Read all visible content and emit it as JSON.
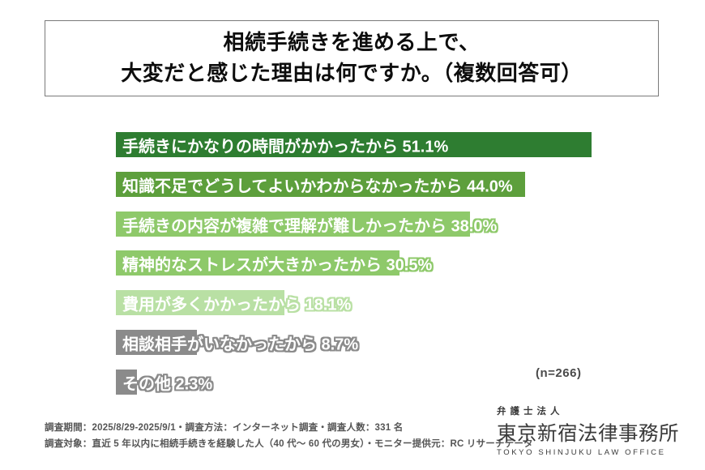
{
  "title": {
    "line1": "相続手続きを進める上で、",
    "line2": "大変だと感じた理由は何ですか。（複数回答可）"
  },
  "chart_data": {
    "type": "bar",
    "orientation": "horizontal",
    "title": "相続手続きを進める上で、大変だと感じた理由は何ですか。（複数回答可）",
    "categories": [
      "手続きにかなりの時間がかかったから",
      "知識不足でどうしてよいかわからなかったから",
      "手続きの内容が複雑で理解が難しかったから",
      "精神的なストレスが大きかったから",
      "費用が多くかかったから",
      "相談相手がいなかったから",
      "その他"
    ],
    "values": [
      51.1,
      44.0,
      38.0,
      30.5,
      18.1,
      8.7,
      2.3
    ],
    "value_labels": [
      "51.1%",
      "44.0%",
      "38.0%",
      "30.5%",
      "18.1%",
      "8.7%",
      "2.3%"
    ],
    "bar_colors": [
      "#2e7d31",
      "#5d9f3c",
      "#8ec96a",
      "#8ec96a",
      "#b9e0a4",
      "#8b8b8b",
      "#8b8b8b"
    ],
    "xlim": [
      0,
      51.1
    ],
    "grid": false,
    "legend": false,
    "sample_note": "(n=266)"
  },
  "footer": {
    "line1": "調査期間：2025/8/29-2025/9/1・調査方法：インターネット調査・調査人数：331 名",
    "line2": "調査対象：直近 5 年以内に相続手続きを経験した人（40 代～ 60 代の男女）・モニター提供元：RC リサーチデータ"
  },
  "logo": {
    "firm_type": "弁護士法人",
    "name": "東京新宿法律事務所",
    "name_en": "TOKYO SHINJUKU LAW OFFICE"
  },
  "colors": {
    "bar_dark_green": "#2e7d31",
    "bar_medium_green": "#5d9f3c",
    "bar_light_green": "#8ec96a",
    "bar_pale_green": "#b9e0a4",
    "bar_gray": "#8b8b8b",
    "title_border": "#7a7a7a",
    "footer_text": "#555555"
  }
}
